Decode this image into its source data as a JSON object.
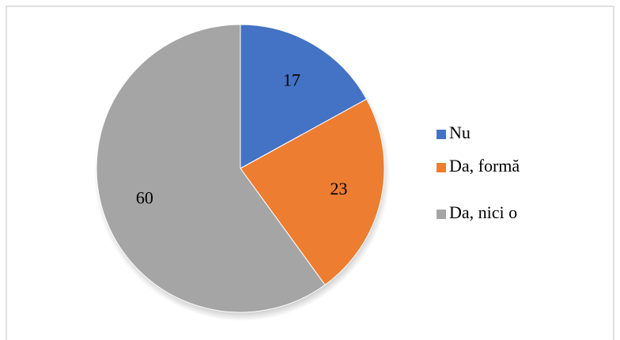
{
  "chart_data": {
    "type": "pie",
    "categories": [
      "Nu",
      "Da, formă",
      "Da, nici o"
    ],
    "values": [
      17,
      23,
      60
    ],
    "colors": [
      "#4472c4",
      "#ed7d31",
      "#a5a5a5"
    ],
    "legend": "right"
  }
}
